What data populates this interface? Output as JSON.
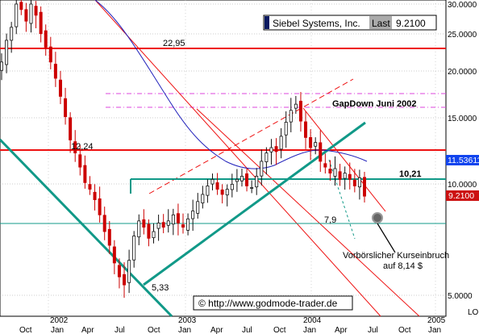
{
  "header": {
    "name": "Siebel Systems, Inc.",
    "last_label": "Last",
    "last_value": "9.2100"
  },
  "footer": {
    "copyright": "© http://www.godmode-trader.de"
  },
  "chart_data": {
    "type": "candlestick",
    "scale": "log",
    "ylim": [
      4.7,
      30
    ],
    "y_ticks": [
      "30.0000",
      "25.0000",
      "20.0000",
      "15.0000",
      "10.0000",
      "5.0000"
    ],
    "x_months": [
      "Oct",
      "Jan",
      "Apr",
      "Jul",
      "Oct",
      "Jan",
      "Apr",
      "Jul",
      "Oct",
      "Jan",
      "Apr",
      "Jul",
      "Oct",
      "Jan"
    ],
    "x_years": [
      "2002",
      "2003",
      "2004",
      "2005"
    ],
    "axis_tag": "LO",
    "price_tags": [
      {
        "value": "11.53611",
        "bg": "#1144ee",
        "fg": "#ffffff"
      },
      {
        "value": "9.2100",
        "bg": "#cc1111",
        "fg": "#ffffff"
      }
    ],
    "levels": [
      {
        "label": "22,95",
        "value": 22.95
      },
      {
        "label": "12,24",
        "value": 12.24
      },
      {
        "label": "10,21",
        "value": 10.21
      },
      {
        "label": "7,9",
        "value": 7.9
      },
      {
        "label": "5,33",
        "value": 5.33
      }
    ],
    "annotations": [
      {
        "text": "GapDown Juni 2002"
      },
      {
        "text": "Vorbörslicher Kurseinbruch"
      },
      {
        "text": "auf 8,14 $"
      }
    ],
    "colors": {
      "up": "#111111",
      "down": "#cc0000",
      "support": "#ee1111",
      "trend": "#119988",
      "gap": "#dd44dd",
      "ma": "#2222bb"
    },
    "weekly_closes": [
      21,
      24,
      26,
      30,
      29,
      27,
      30,
      28,
      25,
      23,
      21,
      19,
      17,
      15,
      13,
      12,
      11,
      10,
      9.6,
      9,
      8.2,
      7.4,
      6.8,
      6.1,
      5.6,
      5.33,
      6.2,
      7.2,
      7.9,
      7.6,
      7.1,
      7.4,
      7.8,
      7.6,
      7.9,
      8.2,
      7.8,
      7.6,
      8.0,
      8.4,
      8.9,
      9.3,
      9.8,
      10.2,
      9.6,
      9.3,
      9.6,
      9.9,
      10.2,
      10.4,
      9.8,
      9.7,
      10.4,
      11.4,
      12.0,
      12.4,
      12.1,
      13.3,
      14.5,
      15.6,
      16.2,
      14.6,
      13.2,
      12.4,
      12.8,
      11.4,
      11.0,
      10.6,
      10.9,
      10.2,
      10.6,
      10.2,
      9.8,
      10.3,
      9.2
    ]
  }
}
